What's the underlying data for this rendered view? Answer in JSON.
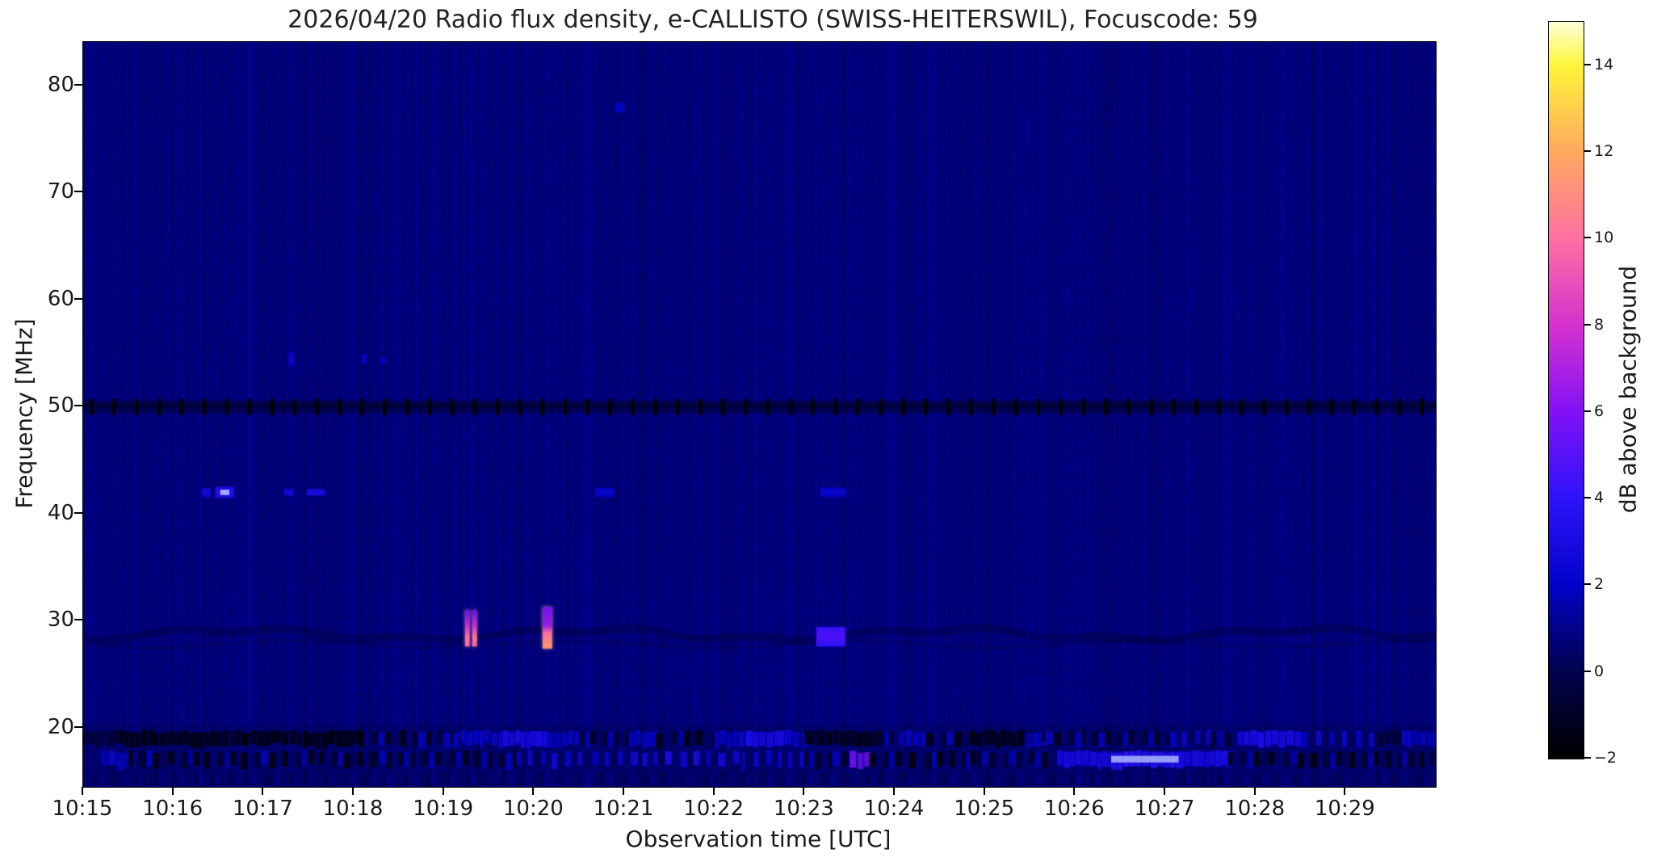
{
  "chart_data": {
    "type": "heatmap",
    "subtype": "radio-spectrogram",
    "title": "2026/04/20  Radio flux density, e-CALLISTO (SWISS-HEITERSWIL), Focuscode: 59",
    "xlabel": "Observation time [UTC]",
    "ylabel": "Frequency [MHz]",
    "x_tick_labels": [
      "10:15",
      "10:16",
      "10:17",
      "10:18",
      "10:19",
      "10:20",
      "10:21",
      "10:22",
      "10:23",
      "10:24",
      "10:25",
      "10:26",
      "10:27",
      "10:28",
      "10:29"
    ],
    "x_range_minutes": [
      0,
      15
    ],
    "y_tick_values": [
      80,
      70,
      60,
      50,
      40,
      30,
      20
    ],
    "ylim_mhz": [
      14.5,
      84.1
    ],
    "grid": false,
    "background_db": 0.7,
    "colorbar": {
      "label": "dB above background",
      "tick_values": [
        -2,
        0,
        2,
        4,
        6,
        8,
        10,
        12,
        14
      ],
      "tick_labels": [
        "−2",
        "0",
        "2",
        "4",
        "6",
        "8",
        "10",
        "12",
        "14"
      ],
      "range_db": [
        -2,
        15
      ],
      "colormap": "gnuplot2",
      "gradient_stops": [
        [
          -2,
          "#000000"
        ],
        [
          0,
          "#02024e"
        ],
        [
          2,
          "#0202c8"
        ],
        [
          4,
          "#2d12fa"
        ],
        [
          6,
          "#8311f5"
        ],
        [
          8,
          "#d631cf"
        ],
        [
          10,
          "#ff70a2"
        ],
        [
          12,
          "#ffa95e"
        ],
        [
          14,
          "#fdf53a"
        ],
        [
          15,
          "#ffffd8"
        ]
      ]
    },
    "calibration_line": {
      "freq_mhz": 50.0,
      "style": "dark dashed horizontal line",
      "dash_period_s": 15,
      "level_db": -2
    },
    "events": [
      {
        "label": "narrow burst",
        "time": "10:19:14",
        "t0": 4.235,
        "t1": 4.285,
        "f_low": 27.6,
        "f_high": 31.0,
        "peak_db": 10.5,
        "stops": [
          [
            0,
            5.0
          ],
          [
            0.4,
            7.5
          ],
          [
            0.75,
            10.2
          ],
          [
            1,
            9.8
          ]
        ]
      },
      {
        "label": "narrow burst",
        "time": "10:19:20",
        "t0": 4.315,
        "t1": 4.365,
        "f_low": 27.6,
        "f_high": 31.0,
        "peak_db": 10.5,
        "stops": [
          [
            0,
            5.0
          ],
          [
            0.4,
            7.5
          ],
          [
            0.75,
            10.2
          ],
          [
            1,
            9.8
          ]
        ]
      },
      {
        "label": "bright burst",
        "time": "10:20:08",
        "t0": 5.095,
        "t1": 5.2,
        "f_low": 27.4,
        "f_high": 31.3,
        "peak_db": 12,
        "stops": [
          [
            0,
            5.5
          ],
          [
            0.45,
            6.5
          ],
          [
            0.62,
            9.8
          ],
          [
            0.95,
            11.5
          ],
          [
            1,
            10.5
          ]
        ]
      },
      {
        "label": "blue enhancement",
        "time": "10:23:10",
        "t0": 8.13,
        "t1": 8.45,
        "f_low": 27.6,
        "f_high": 29.4,
        "peak_db": 4.6,
        "stops": [
          [
            0,
            4.2
          ],
          [
            0.5,
            4.8
          ],
          [
            1,
            4.0
          ]
        ]
      },
      {
        "label": "42 MHz RFI",
        "time": "10:16:20",
        "t0": 1.32,
        "t1": 1.41,
        "f_low": 41.6,
        "f_high": 42.4,
        "peak_db": 3.0,
        "stops": [
          [
            0,
            2.6
          ],
          [
            0.5,
            3.0
          ],
          [
            1,
            2.6
          ]
        ]
      },
      {
        "label": "42 MHz RFI bright",
        "time": "10:16:30",
        "t0": 1.47,
        "t1": 1.67,
        "f_low": 41.5,
        "f_high": 42.5,
        "peak_db": 5.5,
        "core": true,
        "stops": [
          [
            0,
            3.0
          ],
          [
            0.5,
            3.6
          ],
          [
            1,
            3.0
          ]
        ]
      },
      {
        "label": "42 MHz RFI",
        "time": "10:17:14",
        "t0": 2.23,
        "t1": 2.33,
        "f_low": 41.7,
        "f_high": 42.3,
        "peak_db": 3.0,
        "stops": [
          [
            0,
            2.6
          ],
          [
            0.5,
            3.0
          ],
          [
            1,
            2.6
          ]
        ]
      },
      {
        "label": "42 MHz RFI",
        "time": "10:17:30",
        "t0": 2.48,
        "t1": 2.68,
        "f_low": 41.7,
        "f_high": 42.3,
        "peak_db": 3.4,
        "stops": [
          [
            0,
            2.8
          ],
          [
            0.5,
            3.2
          ],
          [
            1,
            2.8
          ]
        ]
      },
      {
        "label": "54 MHz trace",
        "time": "10:17:17",
        "t0": 2.28,
        "t1": 2.33,
        "f_low": 53.8,
        "f_high": 55.1,
        "peak_db": 2.6,
        "stops": [
          [
            0,
            2.0
          ],
          [
            0.5,
            2.6
          ],
          [
            1,
            2.0
          ]
        ]
      },
      {
        "label": "54 MHz trace",
        "time": "10:18:06",
        "t0": 3.09,
        "t1": 3.14,
        "f_low": 54.0,
        "f_high": 54.9,
        "peak_db": 2.3,
        "stops": [
          [
            0,
            1.9
          ],
          [
            0.5,
            2.3
          ],
          [
            1,
            1.9
          ]
        ]
      },
      {
        "label": "54 MHz trace",
        "time": "10:18:19",
        "t0": 3.3,
        "t1": 3.35,
        "f_low": 54.0,
        "f_high": 54.6,
        "peak_db": 2.1,
        "stops": [
          [
            0,
            1.8
          ],
          [
            0.5,
            2.1
          ],
          [
            1,
            1.8
          ]
        ]
      },
      {
        "label": "42 MHz faint",
        "time": "10:20:42",
        "t0": 5.68,
        "t1": 5.88,
        "f_low": 41.6,
        "f_high": 42.4,
        "peak_db": 2.4,
        "stops": [
          [
            0,
            2.0
          ],
          [
            0.5,
            2.4
          ],
          [
            1,
            2.0
          ]
        ]
      },
      {
        "label": "42 MHz faint",
        "time": "10:23:12",
        "t0": 8.18,
        "t1": 8.45,
        "f_low": 41.6,
        "f_high": 42.4,
        "peak_db": 2.4,
        "stops": [
          [
            0,
            2.0
          ],
          [
            0.5,
            2.4
          ],
          [
            1,
            2.0
          ]
        ]
      },
      {
        "label": "78 MHz faint dot",
        "time": "10:20:55",
        "t0": 5.9,
        "t1": 6.0,
        "f_low": 77.5,
        "f_high": 78.4,
        "peak_db": 2.1,
        "stops": [
          [
            0,
            1.8
          ],
          [
            0.5,
            2.1
          ],
          [
            1,
            1.8
          ]
        ]
      }
    ],
    "noise_bands": [
      {
        "name": "19.5 MHz interference band",
        "f_low": 18.25,
        "f_high": 19.75,
        "segments": [
          {
            "t0": 0.0,
            "t1": 0.4,
            "style": "dark"
          },
          {
            "t0": 0.4,
            "t1": 3.05,
            "style": "black"
          },
          {
            "t0": 3.05,
            "t1": 3.65,
            "style": "mottled"
          },
          {
            "t0": 3.65,
            "t1": 4.1,
            "style": "mixed"
          },
          {
            "t0": 4.1,
            "t1": 4.65,
            "style": "blue"
          },
          {
            "t0": 4.65,
            "t1": 5.15,
            "style": "bright"
          },
          {
            "t0": 5.15,
            "t1": 5.5,
            "style": "blue"
          },
          {
            "t0": 5.5,
            "t1": 6.05,
            "style": "mixed"
          },
          {
            "t0": 6.05,
            "t1": 6.35,
            "style": "blue"
          },
          {
            "t0": 6.35,
            "t1": 7.0,
            "style": "mottled"
          },
          {
            "t0": 7.0,
            "t1": 7.35,
            "style": "blue"
          },
          {
            "t0": 7.35,
            "t1": 7.8,
            "style": "bright"
          },
          {
            "t0": 7.8,
            "t1": 8.0,
            "style": "blue"
          },
          {
            "t0": 8.0,
            "t1": 8.8,
            "style": "black"
          },
          {
            "t0": 8.8,
            "t1": 9.05,
            "style": "mixed"
          },
          {
            "t0": 9.05,
            "t1": 9.35,
            "style": "blue"
          },
          {
            "t0": 9.35,
            "t1": 9.9,
            "style": "mottled"
          },
          {
            "t0": 9.9,
            "t1": 10.45,
            "style": "black"
          },
          {
            "t0": 10.45,
            "t1": 10.62,
            "style": "blue"
          },
          {
            "t0": 10.62,
            "t1": 12.05,
            "style": "mixed"
          },
          {
            "t0": 12.05,
            "t1": 12.5,
            "style": "bluedash"
          },
          {
            "t0": 12.5,
            "t1": 12.8,
            "style": "mixed"
          },
          {
            "t0": 12.8,
            "t1": 13.5,
            "style": "bright"
          },
          {
            "t0": 13.5,
            "t1": 14.35,
            "style": "bluedash"
          },
          {
            "t0": 14.35,
            "t1": 14.62,
            "style": "dark"
          },
          {
            "t0": 14.62,
            "t1": 15.0,
            "style": "blue"
          }
        ]
      },
      {
        "name": "17.5 MHz interference band",
        "f_low": 16.3,
        "f_high": 17.85,
        "segments": [
          {
            "t0": 0.0,
            "t1": 0.2,
            "style": "dim"
          },
          {
            "t0": 0.2,
            "t1": 0.5,
            "style": "blue"
          },
          {
            "t0": 0.5,
            "t1": 3.2,
            "style": "mottled"
          },
          {
            "t0": 3.2,
            "t1": 4.8,
            "style": "mixed"
          },
          {
            "t0": 4.8,
            "t1": 6.2,
            "style": "bluedash"
          },
          {
            "t0": 6.2,
            "t1": 7.3,
            "style": "brightdash"
          },
          {
            "t0": 7.3,
            "t1": 8.0,
            "style": "bluedash"
          },
          {
            "t0": 8.0,
            "t1": 8.5,
            "style": "mixed"
          },
          {
            "t0": 8.5,
            "t1": 8.72,
            "style": "magenta"
          },
          {
            "t0": 8.72,
            "t1": 9.9,
            "style": "mottled"
          },
          {
            "t0": 9.9,
            "t1": 10.8,
            "style": "mixed"
          },
          {
            "t0": 10.8,
            "t1": 11.4,
            "style": "bright"
          },
          {
            "t0": 11.4,
            "t1": 12.15,
            "style": "light"
          },
          {
            "t0": 12.15,
            "t1": 12.7,
            "style": "bright"
          },
          {
            "t0": 12.7,
            "t1": 15.0,
            "style": "mottled"
          }
        ]
      },
      {
        "name": "bottom edge noise",
        "f_low": 14.6,
        "f_high": 15.9,
        "segments": [
          {
            "t0": 0.0,
            "t1": 15.0,
            "style": "dimmottle"
          }
        ]
      }
    ]
  },
  "colors": {
    "figure_background": "#ffffff",
    "plot_background_navy": "#000085",
    "axis_text": "#1a1a1a",
    "spine": "#000000"
  }
}
